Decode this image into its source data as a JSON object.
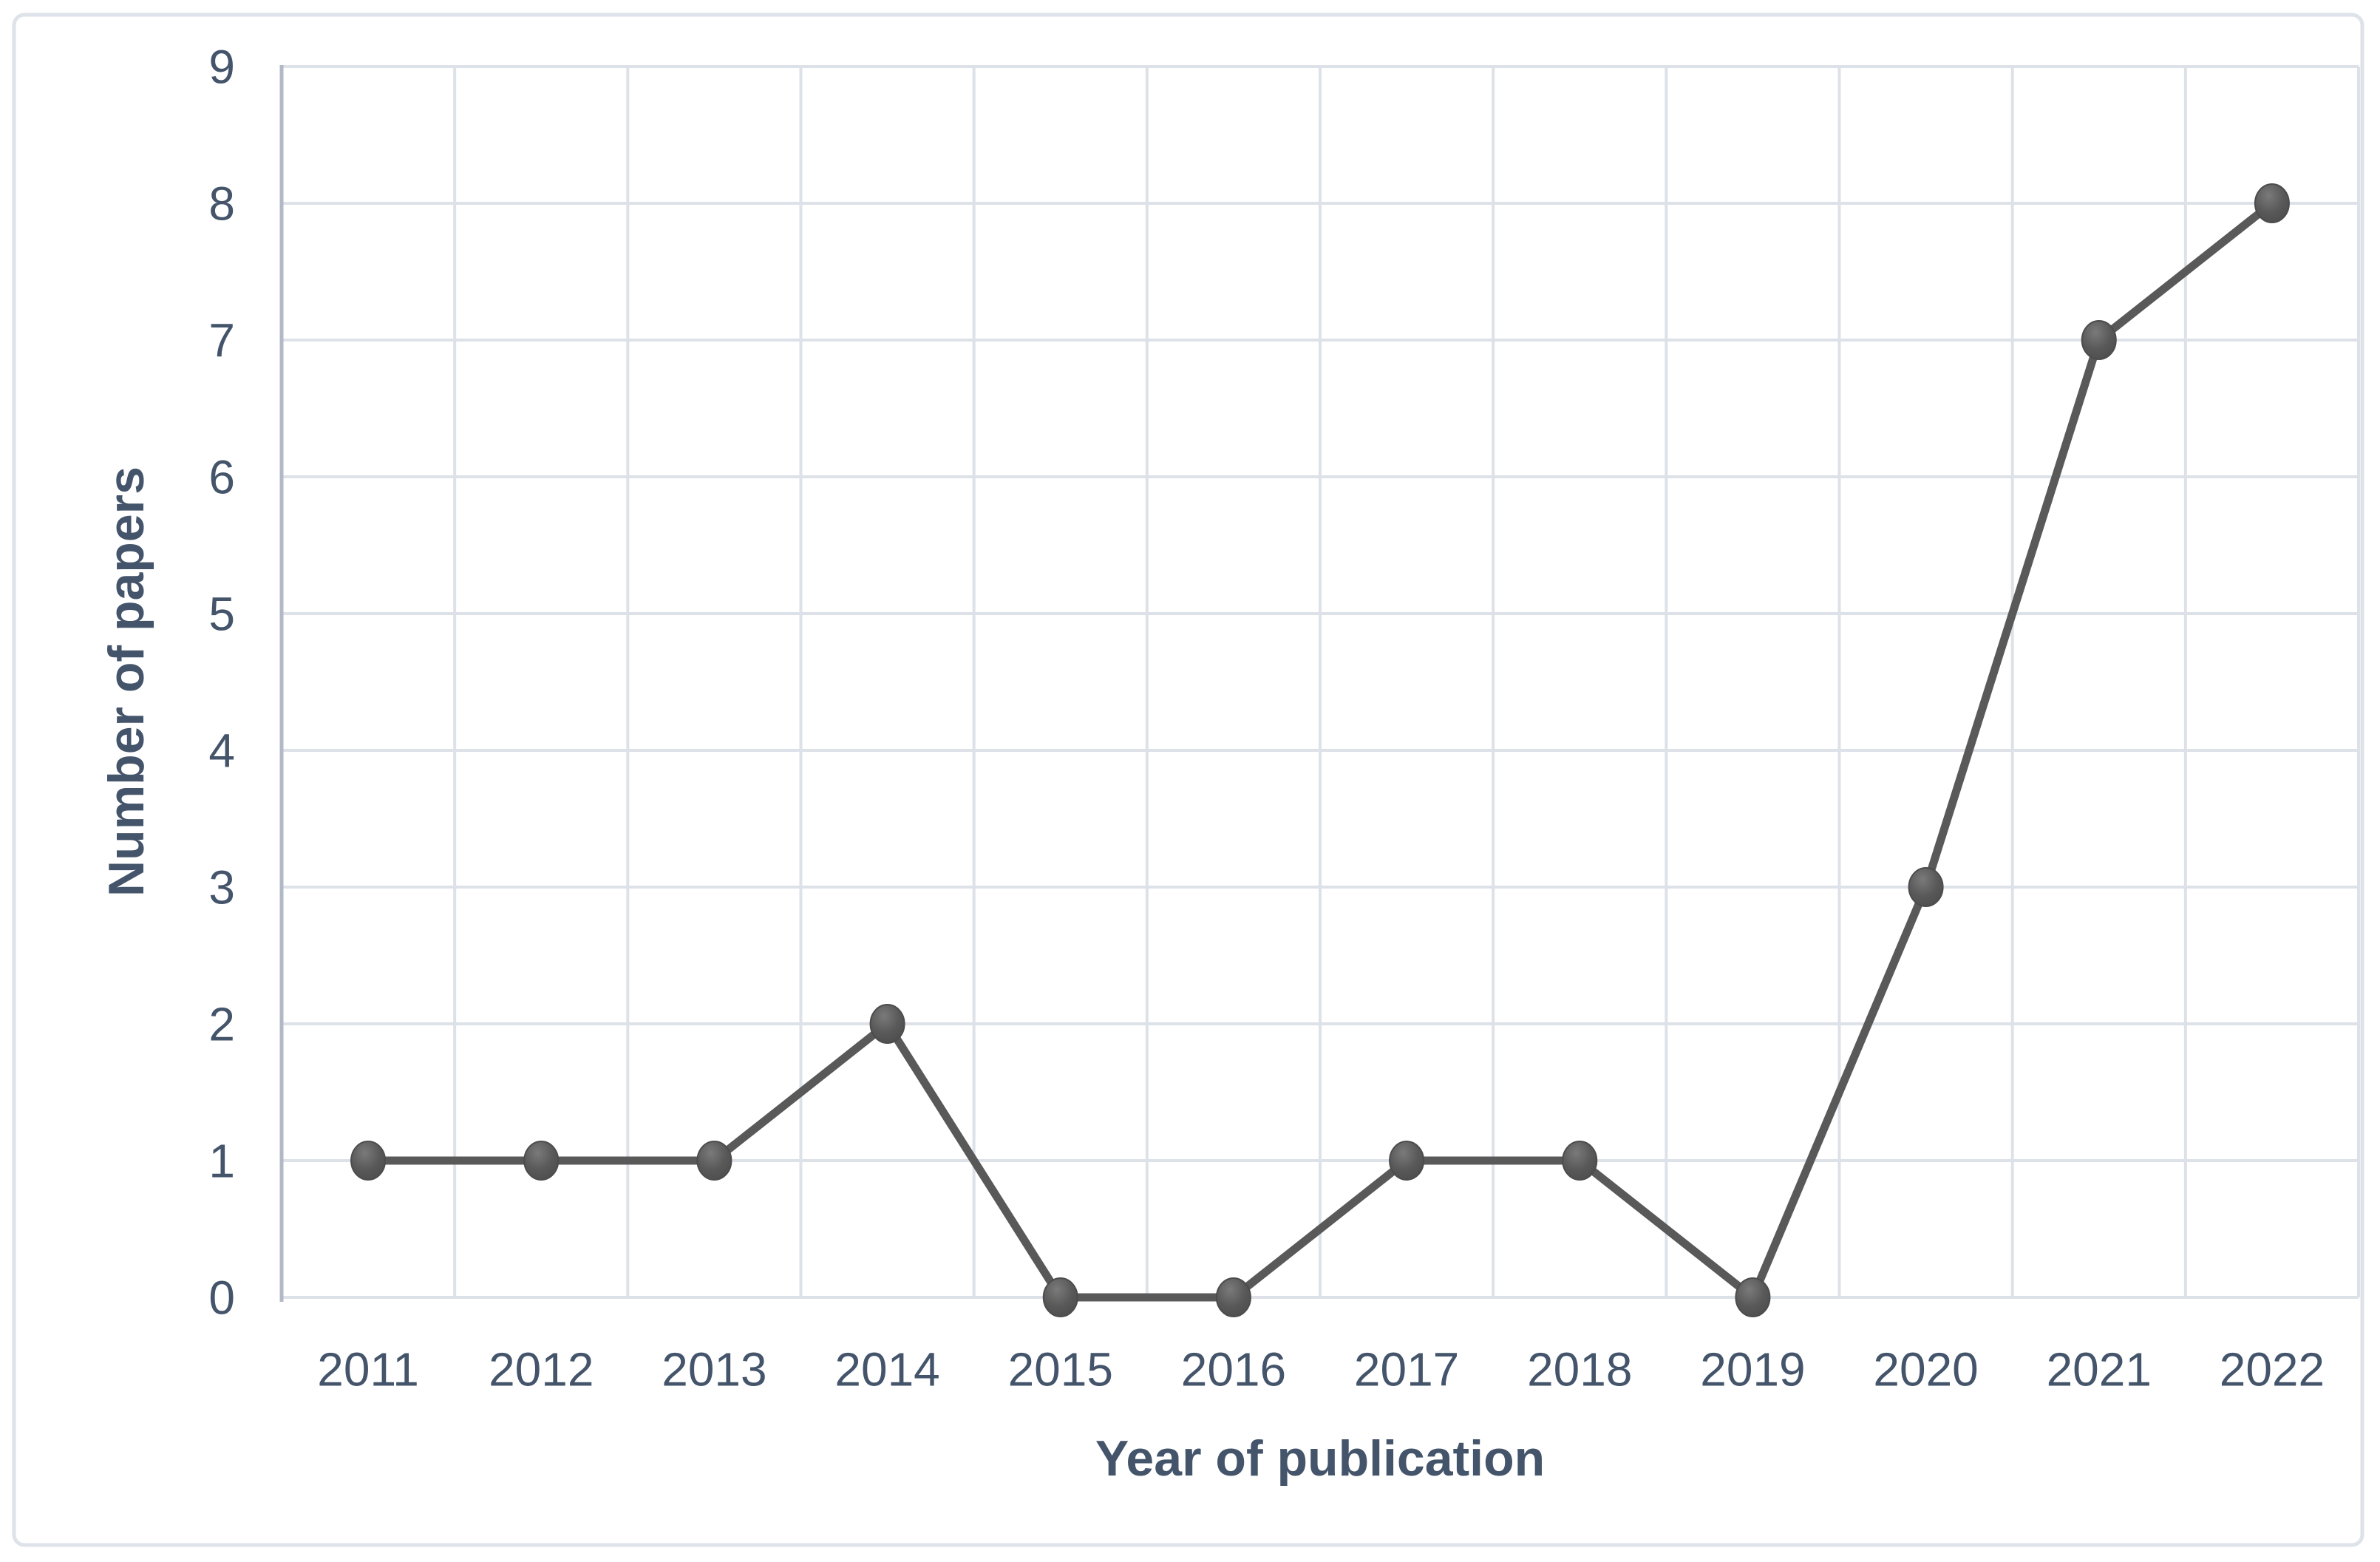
{
  "figure": {
    "background_color": "#FFFFFF",
    "border_color": "#DEE2E9"
  },
  "chart_data": {
    "type": "line",
    "title": "",
    "categories": [
      "2011",
      "2012",
      "2013",
      "2014",
      "2015",
      "2016",
      "2017",
      "2018",
      "2019",
      "2020",
      "2021",
      "2022"
    ],
    "values": [
      1,
      1,
      1,
      2,
      0,
      0,
      1,
      1,
      0,
      3,
      7,
      8
    ],
    "xlabel": "Year of publication",
    "ylabel": "Number of papers",
    "ylim": [
      0,
      9
    ],
    "yticks": [
      0,
      1,
      2,
      3,
      4,
      5,
      6,
      7,
      8,
      9
    ],
    "grid": "both",
    "legend_position": "none",
    "line_color": "#595959",
    "marker_color": "#595959",
    "marker_highlight_color": "#7A7A7A",
    "marker_edge_color": "#4C4C4C",
    "gridline_color": "#DDE1E8",
    "value_axis_line_color": "#B2B8C5",
    "text_color": "#44546A"
  }
}
